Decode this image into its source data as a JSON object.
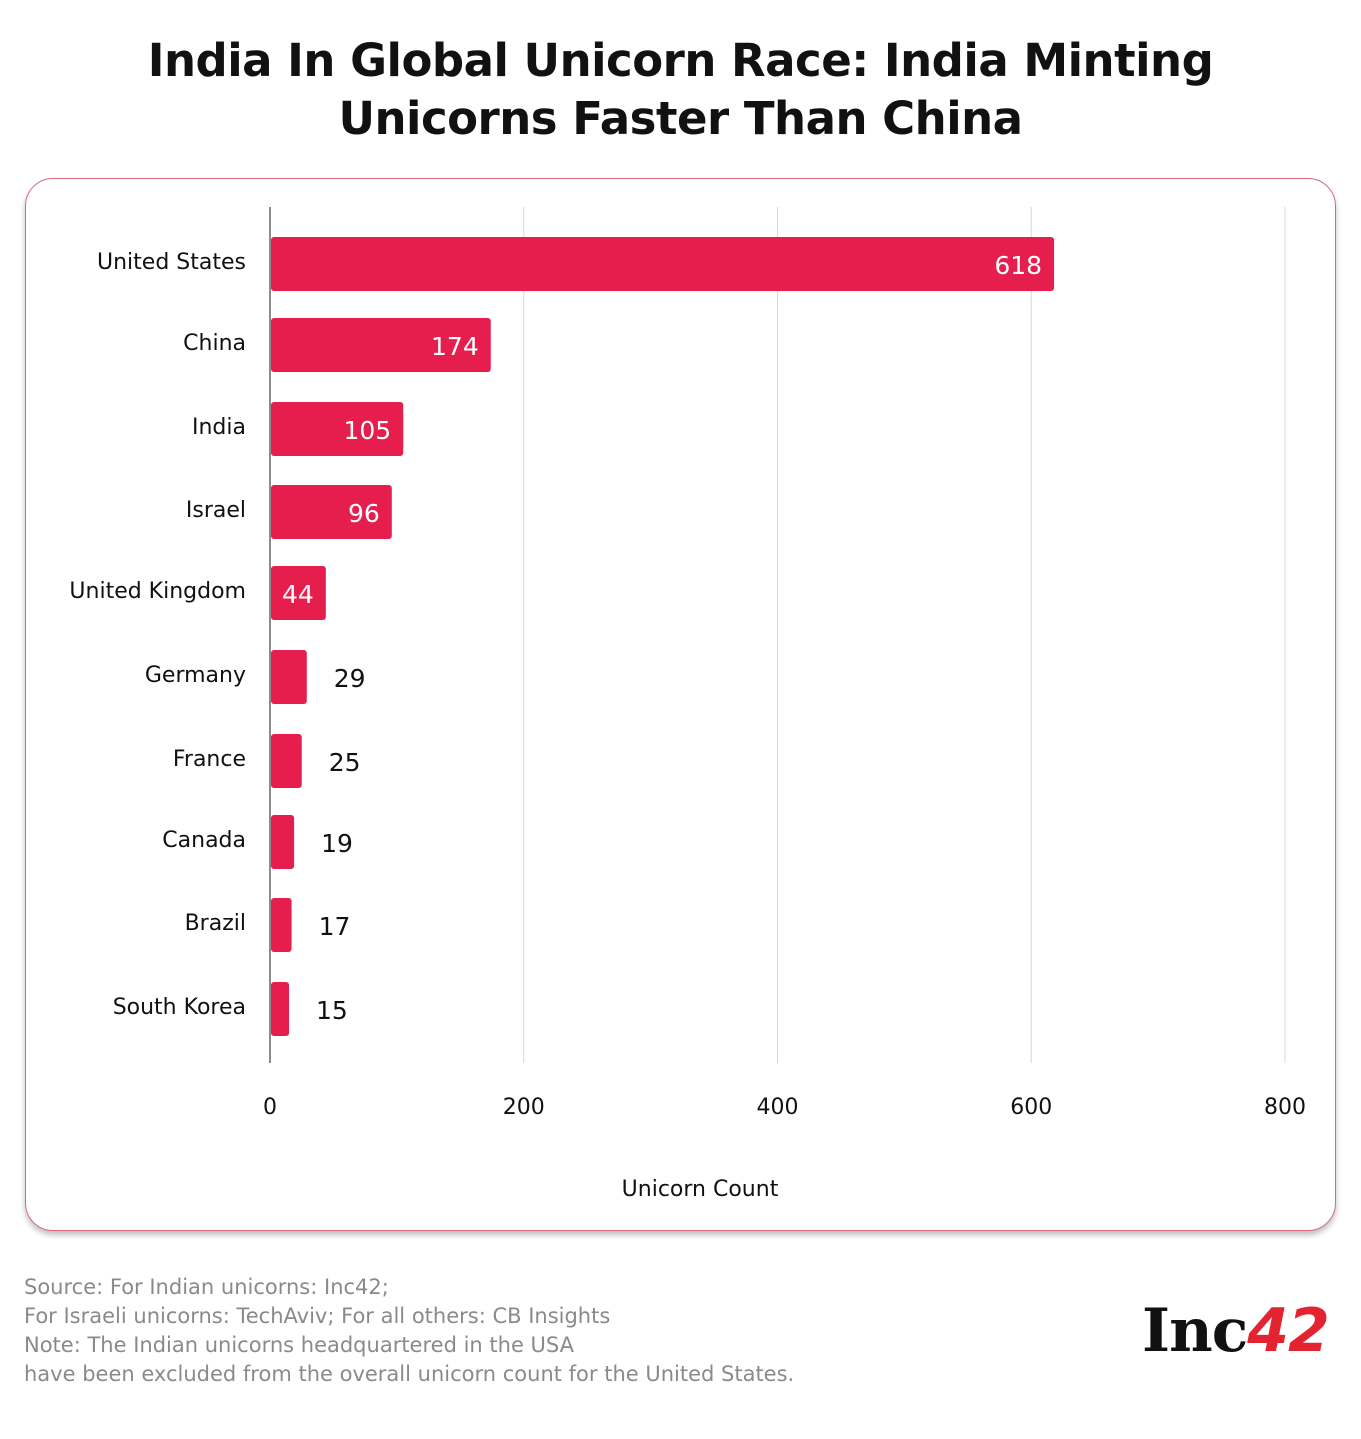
{
  "title_line1": "India In Global Unicorn Race: India Minting",
  "title_line2": "Unicorns Faster Than China",
  "chart_data": {
    "type": "bar",
    "orientation": "horizontal",
    "categories": [
      "United States",
      "China",
      "India",
      "Israel",
      "United Kingdom",
      "Germany",
      "France",
      "Canada",
      "Brazil",
      "South Korea"
    ],
    "values": [
      618,
      174,
      105,
      96,
      44,
      29,
      25,
      19,
      17,
      15
    ],
    "xlabel": "Unicorn Count",
    "ylabel": "",
    "xlim": [
      0,
      800
    ],
    "xticks": [
      0,
      200,
      400,
      600,
      800
    ],
    "grid": true,
    "bar_color": "#e61e4d"
  },
  "notes": [
    "Source: For Indian unicorns: Inc42;",
    "For Israeli unicorns: TechAviv; For all others: CB Insights",
    "Note: The Indian unicorns headquartered in the USA",
    "have been excluded from the overall unicorn count for the United States."
  ],
  "logo": {
    "text": "Inc",
    "accent": "42"
  }
}
